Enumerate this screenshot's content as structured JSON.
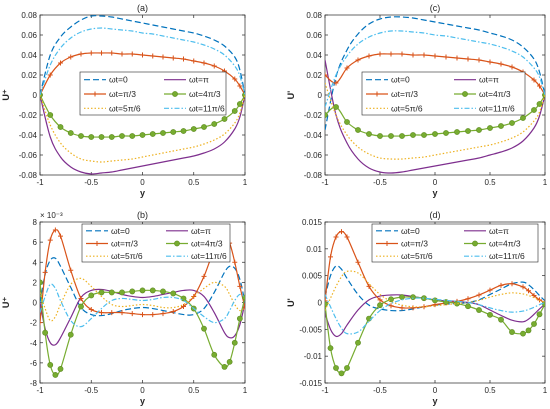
{
  "chart_data": [
    {
      "type": "line",
      "title": "(a)",
      "xlabel": "y",
      "ylabel": "U⁺",
      "xlim": [
        -1,
        1
      ],
      "ylim": [
        -0.08,
        0.08
      ],
      "xticks": [
        -1,
        -0.5,
        0,
        0.5,
        1
      ],
      "xtick_labels": [
        "-1",
        "-0.5",
        "0",
        "0.5",
        "1"
      ],
      "yticks": [
        -0.08,
        -0.06,
        -0.04,
        -0.02,
        0,
        0.02,
        0.04,
        0.06,
        0.08
      ],
      "ytick_labels": [
        "-0.08",
        "-0.06",
        "-0.04",
        "-0.02",
        "0",
        "0.02",
        "0.04",
        "0.06",
        "0.08"
      ],
      "exponent": "",
      "grid": false,
      "legend_position": "center",
      "x": [
        -1,
        -0.9,
        -0.8,
        -0.7,
        -0.6,
        -0.5,
        -0.4,
        -0.3,
        -0.2,
        -0.1,
        0,
        0.1,
        0.2,
        0.3,
        0.4,
        0.5,
        0.6,
        0.7,
        0.8,
        0.9,
        0.95,
        1
      ],
      "series": [
        {
          "name": "ωt=0",
          "values": [
            0,
            0.04,
            0.058,
            0.068,
            0.075,
            0.079,
            0.079,
            0.078,
            0.076,
            0.074,
            0.072,
            0.07,
            0.068,
            0.066,
            0.064,
            0.062,
            0.059,
            0.055,
            0.049,
            0.038,
            0.025,
            0
          ]
        },
        {
          "name": "ωt=π",
          "values": [
            0,
            -0.042,
            -0.062,
            -0.072,
            -0.077,
            -0.079,
            -0.078,
            -0.077,
            -0.075,
            -0.073,
            -0.071,
            -0.069,
            -0.067,
            -0.065,
            -0.063,
            -0.061,
            -0.058,
            -0.054,
            -0.047,
            -0.034,
            -0.022,
            0
          ]
        },
        {
          "name": "ωt=π/3",
          "values": [
            0,
            0.02,
            0.032,
            0.038,
            0.041,
            0.042,
            0.042,
            0.042,
            0.041,
            0.041,
            0.04,
            0.039,
            0.038,
            0.037,
            0.036,
            0.034,
            0.032,
            0.029,
            0.024,
            0.016,
            0.009,
            0
          ]
        },
        {
          "name": "ωt=4π/3",
          "values": [
            0,
            -0.02,
            -0.032,
            -0.038,
            -0.041,
            -0.042,
            -0.042,
            -0.042,
            -0.041,
            -0.041,
            -0.04,
            -0.039,
            -0.038,
            -0.037,
            -0.036,
            -0.034,
            -0.032,
            -0.029,
            -0.024,
            -0.016,
            -0.009,
            0
          ]
        },
        {
          "name": "ωt=5π/6",
          "values": [
            0,
            -0.03,
            -0.048,
            -0.058,
            -0.064,
            -0.066,
            -0.067,
            -0.066,
            -0.065,
            -0.064,
            -0.062,
            -0.06,
            -0.058,
            -0.056,
            -0.054,
            -0.052,
            -0.049,
            -0.045,
            -0.039,
            -0.028,
            -0.018,
            0
          ]
        },
        {
          "name": "ωt=11π/6",
          "values": [
            0,
            0.03,
            0.047,
            0.057,
            0.063,
            0.066,
            0.067,
            0.066,
            0.065,
            0.064,
            0.062,
            0.061,
            0.059,
            0.057,
            0.055,
            0.053,
            0.05,
            0.046,
            0.04,
            0.029,
            0.019,
            0
          ]
        }
      ]
    },
    {
      "type": "line",
      "title": "(c)",
      "xlabel": "y",
      "ylabel": "U'",
      "xlim": [
        -1,
        1
      ],
      "ylim": [
        -0.08,
        0.08
      ],
      "xticks": [
        -1,
        -0.5,
        0,
        0.5,
        1
      ],
      "xtick_labels": [
        "-1",
        "-0.5",
        "0",
        "0.5",
        "1"
      ],
      "yticks": [
        -0.08,
        -0.06,
        -0.04,
        -0.02,
        0,
        0.02,
        0.04,
        0.06,
        0.08
      ],
      "ytick_labels": [
        "-0.08",
        "-0.06",
        "-0.04",
        "-0.02",
        "0",
        "0.02",
        "0.04",
        "0.06",
        "0.08"
      ],
      "exponent": "",
      "grid": false,
      "legend_position": "center",
      "x": [
        -1,
        -0.9,
        -0.8,
        -0.7,
        -0.6,
        -0.5,
        -0.4,
        -0.3,
        -0.2,
        -0.1,
        0,
        0.1,
        0.2,
        0.3,
        0.4,
        0.5,
        0.6,
        0.7,
        0.8,
        0.9,
        0.95,
        1
      ],
      "series": [
        {
          "name": "ωt=0",
          "values": [
            -0.035,
            0.018,
            0.045,
            0.061,
            0.071,
            0.076,
            0.078,
            0.078,
            0.077,
            0.075,
            0.073,
            0.071,
            0.069,
            0.067,
            0.065,
            0.062,
            0.059,
            0.055,
            0.048,
            0.036,
            0.023,
            0
          ]
        },
        {
          "name": "ωt=π",
          "values": [
            0.035,
            -0.02,
            -0.048,
            -0.064,
            -0.073,
            -0.077,
            -0.078,
            -0.077,
            -0.075,
            -0.073,
            -0.071,
            -0.069,
            -0.067,
            -0.065,
            -0.063,
            -0.06,
            -0.057,
            -0.053,
            -0.046,
            -0.033,
            -0.021,
            0
          ]
        },
        {
          "name": "ωt=π/3",
          "values": [
            0.02,
            0.012,
            0.027,
            0.035,
            0.039,
            0.041,
            0.041,
            0.041,
            0.04,
            0.04,
            0.039,
            0.038,
            0.037,
            0.036,
            0.035,
            0.033,
            0.031,
            0.028,
            0.023,
            0.015,
            0.009,
            0
          ]
        },
        {
          "name": "ωt=4π/3",
          "values": [
            -0.02,
            -0.012,
            -0.027,
            -0.035,
            -0.039,
            -0.041,
            -0.041,
            -0.041,
            -0.04,
            -0.04,
            -0.039,
            -0.038,
            -0.037,
            -0.036,
            -0.035,
            -0.033,
            -0.031,
            -0.028,
            -0.023,
            -0.015,
            -0.009,
            0
          ]
        },
        {
          "name": "ωt=5π/6",
          "values": [
            0.012,
            -0.02,
            -0.04,
            -0.052,
            -0.059,
            -0.063,
            -0.064,
            -0.064,
            -0.063,
            -0.062,
            -0.06,
            -0.058,
            -0.056,
            -0.054,
            -0.052,
            -0.05,
            -0.047,
            -0.043,
            -0.037,
            -0.026,
            -0.017,
            0
          ]
        },
        {
          "name": "ωt=11π/6",
          "values": [
            -0.012,
            0.02,
            0.039,
            0.051,
            0.058,
            0.062,
            0.064,
            0.064,
            0.063,
            0.062,
            0.06,
            0.059,
            0.057,
            0.055,
            0.053,
            0.051,
            0.048,
            0.044,
            0.038,
            0.027,
            0.018,
            0
          ]
        }
      ]
    },
    {
      "type": "line",
      "title": "(b)",
      "xlabel": "y",
      "ylabel": "U⁺",
      "xlim": [
        -1,
        1
      ],
      "ylim": [
        -8,
        8
      ],
      "xticks": [
        -1,
        -0.5,
        0,
        0.5,
        1
      ],
      "xtick_labels": [
        "-1",
        "-0.5",
        "0",
        "0.5",
        "1"
      ],
      "yticks": [
        -8,
        -6,
        -4,
        -2,
        0,
        2,
        4,
        6,
        8
      ],
      "ytick_labels": [
        "-8",
        "-6",
        "-4",
        "-2",
        "0",
        "2",
        "4",
        "6",
        "8"
      ],
      "exponent": "× 10⁻³",
      "grid": false,
      "legend_position": "top",
      "x": [
        -1,
        -0.95,
        -0.9,
        -0.85,
        -0.8,
        -0.7,
        -0.6,
        -0.5,
        -0.4,
        -0.3,
        -0.2,
        -0.1,
        0,
        0.1,
        0.2,
        0.3,
        0.4,
        0.5,
        0.6,
        0.7,
        0.8,
        0.85,
        0.9,
        0.95,
        1
      ],
      "series": [
        {
          "name": "ωt=0",
          "values": [
            0,
            2.8,
            4.2,
            4.4,
            3.6,
            1.5,
            -0.5,
            -1.2,
            -1.3,
            -1.1,
            -0.8,
            -0.6,
            -0.5,
            -0.6,
            -0.8,
            -1.0,
            -1.2,
            -1.2,
            -0.6,
            1.0,
            3.0,
            3.6,
            3.4,
            2.3,
            0
          ]
        },
        {
          "name": "ωt=π",
          "values": [
            0,
            -2.6,
            -4.0,
            -4.2,
            -3.5,
            -1.5,
            0.5,
            1.2,
            1.3,
            1.1,
            0.8,
            0.6,
            0.5,
            0.6,
            0.8,
            1.0,
            1.2,
            1.2,
            0.6,
            -1.0,
            -3.0,
            -3.5,
            -3.3,
            -2.2,
            0
          ]
        },
        {
          "name": "ωt=π/3",
          "values": [
            -2.0,
            3.0,
            6.2,
            7.2,
            6.6,
            3.2,
            0.4,
            -0.7,
            -1.0,
            -1.0,
            -1.0,
            -1.1,
            -1.2,
            -1.2,
            -1.1,
            -0.9,
            -0.4,
            0.6,
            2.6,
            5.2,
            6.4,
            5.9,
            4.0,
            1.6,
            -0.5
          ]
        },
        {
          "name": "ωt=4π/3",
          "values": [
            2.0,
            -3.0,
            -6.2,
            -7.2,
            -6.6,
            -3.2,
            -0.4,
            0.7,
            1.0,
            1.0,
            1.0,
            1.1,
            1.2,
            1.2,
            1.1,
            0.9,
            0.4,
            -0.6,
            -2.6,
            -5.2,
            -6.4,
            -5.9,
            -4.0,
            -1.6,
            0.5
          ]
        },
        {
          "name": "ωt=5π/6",
          "values": [
            1.0,
            -0.6,
            -1.8,
            -1.4,
            -0.2,
            1.8,
            2.4,
            1.6,
            0.6,
            -0.2,
            -0.4,
            -0.3,
            -0.2,
            -0.3,
            -0.5,
            -0.5,
            -0.2,
            0.6,
            1.4,
            2.0,
            1.6,
            0.8,
            -0.2,
            -0.8,
            -0.5
          ]
        },
        {
          "name": "ωt=11π/6",
          "values": [
            -1.0,
            0.6,
            1.8,
            1.4,
            0.2,
            -1.8,
            -2.4,
            -1.6,
            -0.6,
            0.2,
            0.4,
            0.3,
            0.2,
            0.3,
            0.5,
            0.5,
            0.2,
            -0.6,
            -1.4,
            -2.0,
            -1.6,
            -0.8,
            0.2,
            0.8,
            0.5
          ]
        }
      ]
    },
    {
      "type": "line",
      "title": "(d)",
      "xlabel": "y",
      "ylabel": "U'",
      "xlim": [
        -1,
        1
      ],
      "ylim": [
        -0.015,
        0.015
      ],
      "xticks": [
        -1,
        -0.5,
        0,
        0.5,
        1
      ],
      "xtick_labels": [
        "-1",
        "-0.5",
        "0",
        "0.5",
        "1"
      ],
      "yticks": [
        -0.015,
        -0.01,
        -0.005,
        0,
        0.005,
        0.01,
        0.015
      ],
      "ytick_labels": [
        "-0.015",
        "-0.01",
        "-0.005",
        "0",
        "0.005",
        "0.01",
        "0.015"
      ],
      "exponent": "",
      "grid": false,
      "legend_position": "top",
      "x": [
        -1,
        -0.95,
        -0.9,
        -0.85,
        -0.8,
        -0.7,
        -0.6,
        -0.5,
        -0.4,
        -0.3,
        -0.2,
        -0.1,
        0,
        0.1,
        0.2,
        0.3,
        0.4,
        0.5,
        0.6,
        0.7,
        0.8,
        0.85,
        0.9,
        0.95,
        1
      ],
      "series": [
        {
          "name": "ωt=0",
          "values": [
            0.001,
            0.005,
            0.0068,
            0.0062,
            0.0045,
            0.0015,
            -0.0005,
            -0.0012,
            -0.0015,
            -0.0015,
            -0.0012,
            -0.0008,
            -0.0005,
            -0.0003,
            -0.0002,
            0.0,
            0.0005,
            0.0015,
            0.0025,
            0.0035,
            0.0038,
            0.0033,
            0.0024,
            0.0013,
            0.0003
          ]
        },
        {
          "name": "ωt=π",
          "values": [
            -0.002,
            -0.005,
            -0.0063,
            -0.0058,
            -0.0042,
            -0.0014,
            0.0005,
            0.0012,
            0.0014,
            0.0014,
            0.0011,
            0.0008,
            0.0005,
            0.0003,
            0.0002,
            0.0,
            -0.0004,
            -0.0014,
            -0.0024,
            -0.0033,
            -0.0036,
            -0.0031,
            -0.0022,
            -0.0012,
            -0.0003
          ]
        },
        {
          "name": "ωt=π/3",
          "values": [
            0.0003,
            0.0085,
            0.0122,
            0.0132,
            0.0122,
            0.0075,
            0.003,
            0.0005,
            -0.0006,
            -0.001,
            -0.001,
            -0.0008,
            -0.0004,
            -0.0001,
            0.0002,
            0.0007,
            0.0014,
            0.0023,
            0.0032,
            0.0035,
            0.0029,
            0.0022,
            0.0013,
            0.0005,
            0.0
          ]
        },
        {
          "name": "ωt=4π/3",
          "values": [
            -0.0003,
            -0.0085,
            -0.0122,
            -0.0132,
            -0.0122,
            -0.0075,
            -0.003,
            -0.0005,
            0.0006,
            0.001,
            0.001,
            0.0008,
            0.0004,
            0.0001,
            -0.0002,
            -0.0007,
            -0.0014,
            -0.0023,
            -0.0032,
            -0.0055,
            -0.0058,
            -0.0052,
            -0.004,
            -0.0022,
            -0.0003
          ]
        },
        {
          "name": "ωt=5π/6",
          "values": [
            -0.0015,
            0.0008,
            0.003,
            0.0048,
            0.0058,
            0.0055,
            0.0035,
            0.0015,
            0.0002,
            -0.0005,
            -0.0008,
            -0.0008,
            -0.0006,
            -0.0004,
            -0.0002,
            0.0,
            0.0004,
            0.001,
            0.0015,
            0.0018,
            0.0016,
            0.0013,
            0.0009,
            0.0004,
            0.0
          ]
        },
        {
          "name": "ωt=11π/6",
          "values": [
            0.0015,
            -0.0008,
            -0.003,
            -0.0048,
            -0.0058,
            -0.0055,
            -0.0035,
            -0.0015,
            -0.0002,
            0.0005,
            0.0008,
            0.0008,
            0.0006,
            0.0004,
            0.0002,
            0.0,
            -0.0004,
            -0.001,
            -0.0015,
            -0.0018,
            -0.0016,
            -0.0013,
            -0.0009,
            -0.0004,
            0.0
          ]
        }
      ]
    }
  ],
  "series_styles": [
    {
      "color": "#0072BD",
      "dash": "6,3",
      "marker": "none"
    },
    {
      "color": "#7E2F8E",
      "dash": "",
      "marker": "none"
    },
    {
      "color": "#D95319",
      "dash": "",
      "marker": "plus"
    },
    {
      "color": "#77AC30",
      "dash": "",
      "marker": "circle"
    },
    {
      "color": "#EDB120",
      "dash": "1.5,2",
      "marker": "none"
    },
    {
      "color": "#4DBEEE",
      "dash": "5,2,1.5,2",
      "marker": "none"
    }
  ]
}
